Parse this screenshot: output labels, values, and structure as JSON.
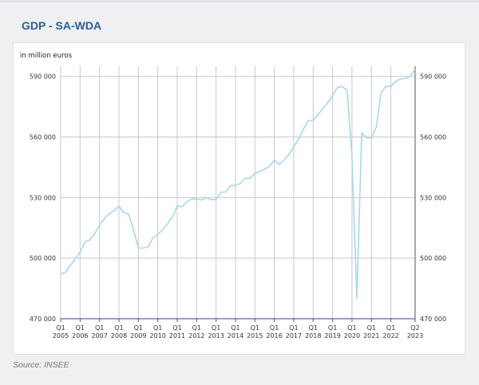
{
  "page": {
    "title": "GDP - SA-WDA",
    "source": "Source: INSEE"
  },
  "chart_data": {
    "type": "line",
    "title": "GDP - SA-WDA",
    "ylabel": "in million euros",
    "xlabel": "",
    "ylim": [
      470000,
      595000
    ],
    "yticks": [
      470000,
      500000,
      530000,
      560000,
      590000
    ],
    "ytick_labels": [
      "470 000",
      "500 000",
      "530 000",
      "560 000",
      "590 000"
    ],
    "x_tick_labels": [
      {
        "q": "Q1",
        "y": "2005"
      },
      {
        "q": "Q1",
        "y": "2006"
      },
      {
        "q": "Q1",
        "y": "2007"
      },
      {
        "q": "Q1",
        "y": "2008"
      },
      {
        "q": "Q1",
        "y": "2009"
      },
      {
        "q": "Q1",
        "y": "2010"
      },
      {
        "q": "Q1",
        "y": "2011"
      },
      {
        "q": "Q1",
        "y": "2012"
      },
      {
        "q": "Q1",
        "y": "2013"
      },
      {
        "q": "Q1",
        "y": "2014"
      },
      {
        "q": "Q1",
        "y": "2015"
      },
      {
        "q": "Q1",
        "y": "2016"
      },
      {
        "q": "Q1",
        "y": "2017"
      },
      {
        "q": "Q1",
        "y": "2018"
      },
      {
        "q": "Q1",
        "y": "2019"
      },
      {
        "q": "Q1",
        "y": "2020"
      },
      {
        "q": "Q1",
        "y": "2021"
      },
      {
        "q": "Q1",
        "y": "2022"
      },
      {
        "q": "Q2",
        "y": "2023"
      }
    ],
    "grid": true,
    "series": [
      {
        "name": "GDP - SA-WDA",
        "color": "#a8d8ee",
        "start": "2005Q1",
        "values": [
          492000,
          493000,
          496500,
          499500,
          503000,
          508000,
          509000,
          512000,
          516500,
          519500,
          522000,
          523500,
          525800,
          522500,
          521800,
          514000,
          505000,
          505000,
          505500,
          510000,
          511800,
          514000,
          517000,
          520500,
          525800,
          525500,
          528000,
          529300,
          529300,
          528800,
          530000,
          529000,
          529000,
          532500,
          532800,
          536000,
          536000,
          537000,
          539500,
          539500,
          542000,
          543000,
          544000,
          545500,
          548500,
          546500,
          548500,
          551500,
          555000,
          559000,
          564000,
          568000,
          568300,
          571000,
          574000,
          577000,
          580500,
          584500,
          585000,
          583000,
          550000,
          480000,
          562000,
          559500,
          559500,
          565000,
          582000,
          585000,
          585000,
          587500,
          588800,
          589000,
          590000,
          593500
        ]
      }
    ]
  }
}
